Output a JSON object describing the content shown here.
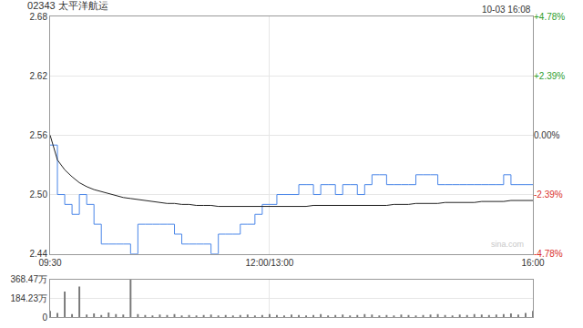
{
  "chart_data": [
    {
      "type": "line",
      "title": "02343 太平洋航运",
      "annotations": [
        "10-03 16:08",
        "sina.com"
      ],
      "x": [
        0,
        5,
        10,
        15,
        20,
        25,
        30,
        35,
        40,
        45,
        50,
        55,
        60,
        65,
        70,
        75,
        80,
        85,
        90,
        95,
        100,
        105,
        110,
        115,
        120,
        125,
        130,
        135,
        140,
        145,
        150,
        155,
        160,
        165,
        170,
        175,
        180,
        185,
        190,
        195,
        200,
        205,
        210,
        215,
        220,
        225,
        230,
        235,
        240,
        245,
        250,
        255,
        260,
        265,
        270,
        275,
        280,
        285,
        290,
        295,
        300,
        305,
        310,
        315,
        320,
        325,
        330
      ],
      "series": [
        {
          "color": "#4a86e8",
          "values": [
            2.55,
            2.5,
            2.49,
            2.48,
            2.5,
            2.49,
            2.47,
            2.45,
            2.45,
            2.45,
            2.45,
            2.44,
            2.47,
            2.47,
            2.47,
            2.47,
            2.47,
            2.46,
            2.45,
            2.45,
            2.45,
            2.45,
            2.44,
            2.46,
            2.46,
            2.46,
            2.47,
            2.47,
            2.48,
            2.49,
            2.49,
            2.5,
            2.5,
            2.5,
            2.51,
            2.51,
            2.5,
            2.51,
            2.51,
            2.5,
            2.51,
            2.51,
            2.5,
            2.51,
            2.52,
            2.52,
            2.51,
            2.51,
            2.51,
            2.51,
            2.52,
            2.52,
            2.52,
            2.51,
            2.51,
            2.51,
            2.51,
            2.51,
            2.51,
            2.51,
            2.51,
            2.51,
            2.52,
            2.51,
            2.51,
            2.51,
            2.51
          ]
        },
        {
          "color": "#222222",
          "values": [
            2.56,
            2.535,
            2.525,
            2.518,
            2.512,
            2.508,
            2.505,
            2.503,
            2.501,
            2.499,
            2.497,
            2.496,
            2.495,
            2.494,
            2.493,
            2.492,
            2.491,
            2.491,
            2.49,
            2.49,
            2.489,
            2.489,
            2.489,
            2.488,
            2.488,
            2.488,
            2.488,
            2.488,
            2.488,
            2.488,
            2.488,
            2.488,
            2.488,
            2.488,
            2.488,
            2.488,
            2.489,
            2.489,
            2.489,
            2.489,
            2.489,
            2.489,
            2.489,
            2.489,
            2.489,
            2.489,
            2.489,
            2.49,
            2.49,
            2.49,
            2.491,
            2.491,
            2.491,
            2.491,
            2.492,
            2.492,
            2.492,
            2.492,
            2.492,
            2.493,
            2.493,
            2.493,
            2.493,
            2.494,
            2.494,
            2.494,
            2.494
          ]
        }
      ],
      "xlim": [
        0,
        330
      ],
      "xticks": [
        {
          "value": 0,
          "label": "09:30"
        },
        {
          "value": 150,
          "label": "12:00/13:00"
        },
        {
          "value": 330,
          "label": "16:00"
        }
      ],
      "ylim": [
        2.44,
        2.68
      ],
      "yticks": [
        2.44,
        {
          "value": 2.5,
          "label": "2.50"
        },
        2.56,
        2.62,
        2.68
      ],
      "y2lim": [
        -4.78,
        4.78
      ],
      "y2ticks": [
        {
          "value": -4.78,
          "label": "-4.78%"
        },
        {
          "value": -2.39,
          "label": "-2.39%"
        },
        {
          "value": 0,
          "label": "0.00%"
        },
        {
          "value": 2.39,
          "label": "+2.39%"
        },
        {
          "value": 4.78,
          "label": "+4.78%"
        }
      ],
      "grid": true
    },
    {
      "type": "bar",
      "x": [
        0,
        5,
        10,
        15,
        20,
        25,
        30,
        35,
        40,
        45,
        50,
        55,
        60,
        65,
        70,
        75,
        80,
        85,
        90,
        95,
        100,
        105,
        110,
        115,
        120,
        125,
        130,
        135,
        140,
        145,
        150,
        155,
        160,
        165,
        170,
        175,
        180,
        185,
        190,
        195,
        200,
        205,
        210,
        215,
        220,
        225,
        230,
        235,
        240,
        245,
        250,
        255,
        260,
        265,
        270,
        275,
        280,
        285,
        290,
        295,
        300,
        305,
        310,
        315,
        320,
        325,
        330
      ],
      "values": [
        60,
        40,
        250,
        30,
        300,
        25,
        35,
        20,
        45,
        30,
        25,
        368.47,
        30,
        20,
        15,
        25,
        20,
        30,
        15,
        20,
        15,
        20,
        25,
        15,
        20,
        15,
        20,
        25,
        15,
        20,
        30,
        20,
        15,
        25,
        20,
        15,
        20,
        30,
        15,
        20,
        25,
        15,
        20,
        30,
        25,
        15,
        20,
        15,
        25,
        20,
        15,
        20,
        25,
        30,
        20,
        15,
        25,
        20,
        30,
        25,
        20,
        25,
        30,
        35,
        25,
        40,
        60
      ],
      "color": "#777777",
      "xlim": [
        0,
        330
      ],
      "ylim": [
        0,
        368.47
      ],
      "yticks": [
        0,
        {
          "value": 184.23,
          "label": "184.23万"
        },
        {
          "value": 368.47,
          "label": "368.47万"
        }
      ],
      "tick_labels": "y",
      "grid": true
    }
  ]
}
